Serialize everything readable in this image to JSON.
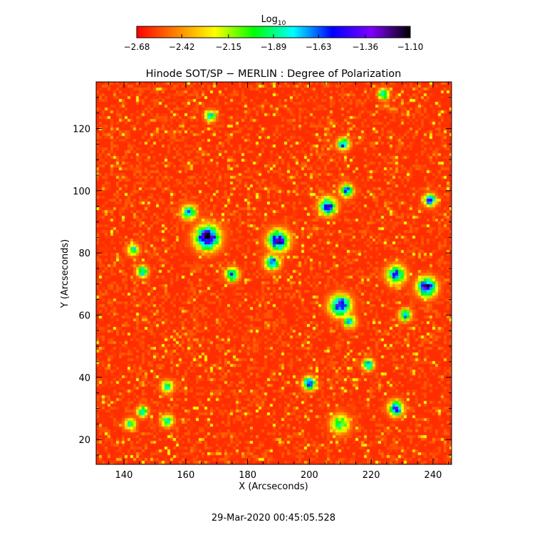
{
  "chart_data": {
    "type": "heatmap",
    "title": "Hinode SOT/SP − MERLIN : Degree of Polarization",
    "xlabel": "X (Arcseconds)",
    "ylabel": "Y (Arcseconds)",
    "xlim": [
      131,
      246
    ],
    "ylim": [
      12,
      135
    ],
    "xticks": [
      140,
      160,
      180,
      200,
      220,
      240
    ],
    "yticks": [
      20,
      40,
      60,
      80,
      100,
      120
    ],
    "colorbar": {
      "label_main": "Log",
      "label_sub": "10",
      "range": [
        -2.68,
        -1.1
      ],
      "tick_values": [
        -2.68,
        -2.42,
        -2.15,
        -1.89,
        -1.63,
        -1.36,
        -1.1
      ],
      "tick_labels": [
        "−2.68",
        "−2.42",
        "−2.15",
        "−1.89",
        "−1.63",
        "−1.36",
        "−1.10"
      ],
      "colormap": [
        "#ff0000",
        "#ff8000",
        "#ffff00",
        "#00ff00",
        "#00ffff",
        "#0000ff",
        "#8000ff",
        "#000000"
      ]
    },
    "background_level": -2.6,
    "features": [
      {
        "x": 167,
        "y": 85,
        "peak": -1.25,
        "sigma": 2.6
      },
      {
        "x": 161,
        "y": 93,
        "peak": -1.7,
        "sigma": 1.6
      },
      {
        "x": 190,
        "y": 84,
        "peak": -1.3,
        "sigma": 2.2
      },
      {
        "x": 188,
        "y": 77,
        "peak": -1.6,
        "sigma": 1.6
      },
      {
        "x": 210,
        "y": 63,
        "peak": -1.35,
        "sigma": 2.2
      },
      {
        "x": 213,
        "y": 58,
        "peak": -1.75,
        "sigma": 1.4
      },
      {
        "x": 238,
        "y": 69,
        "peak": -1.25,
        "sigma": 2.0
      },
      {
        "x": 228,
        "y": 73,
        "peak": -1.6,
        "sigma": 2.0
      },
      {
        "x": 206,
        "y": 95,
        "peak": -1.4,
        "sigma": 1.8
      },
      {
        "x": 212,
        "y": 100,
        "peak": -1.6,
        "sigma": 1.4
      },
      {
        "x": 239,
        "y": 97,
        "peak": -1.5,
        "sigma": 1.3
      },
      {
        "x": 211,
        "y": 115,
        "peak": -1.6,
        "sigma": 1.3
      },
      {
        "x": 175,
        "y": 73,
        "peak": -1.6,
        "sigma": 1.4
      },
      {
        "x": 146,
        "y": 74,
        "peak": -1.7,
        "sigma": 1.2
      },
      {
        "x": 200,
        "y": 38,
        "peak": -1.5,
        "sigma": 1.4
      },
      {
        "x": 219,
        "y": 44,
        "peak": -1.6,
        "sigma": 1.2
      },
      {
        "x": 228,
        "y": 30,
        "peak": -1.5,
        "sigma": 1.6
      },
      {
        "x": 154,
        "y": 37,
        "peak": -1.8,
        "sigma": 1.3
      },
      {
        "x": 146,
        "y": 29,
        "peak": -1.8,
        "sigma": 1.2
      },
      {
        "x": 142,
        "y": 25,
        "peak": -1.8,
        "sigma": 1.2
      },
      {
        "x": 154,
        "y": 26,
        "peak": -1.8,
        "sigma": 1.3
      },
      {
        "x": 168,
        "y": 124,
        "peak": -1.8,
        "sigma": 1.2
      },
      {
        "x": 224,
        "y": 131,
        "peak": -1.8,
        "sigma": 1.2
      },
      {
        "x": 231,
        "y": 60,
        "peak": -1.7,
        "sigma": 1.3
      },
      {
        "x": 210,
        "y": 25,
        "peak": -1.9,
        "sigma": 2.0
      },
      {
        "x": 143,
        "y": 81,
        "peak": -1.8,
        "sigma": 1.2
      }
    ]
  },
  "footer": {
    "timestamp": "29-Mar-2020 00:45:05.528"
  }
}
